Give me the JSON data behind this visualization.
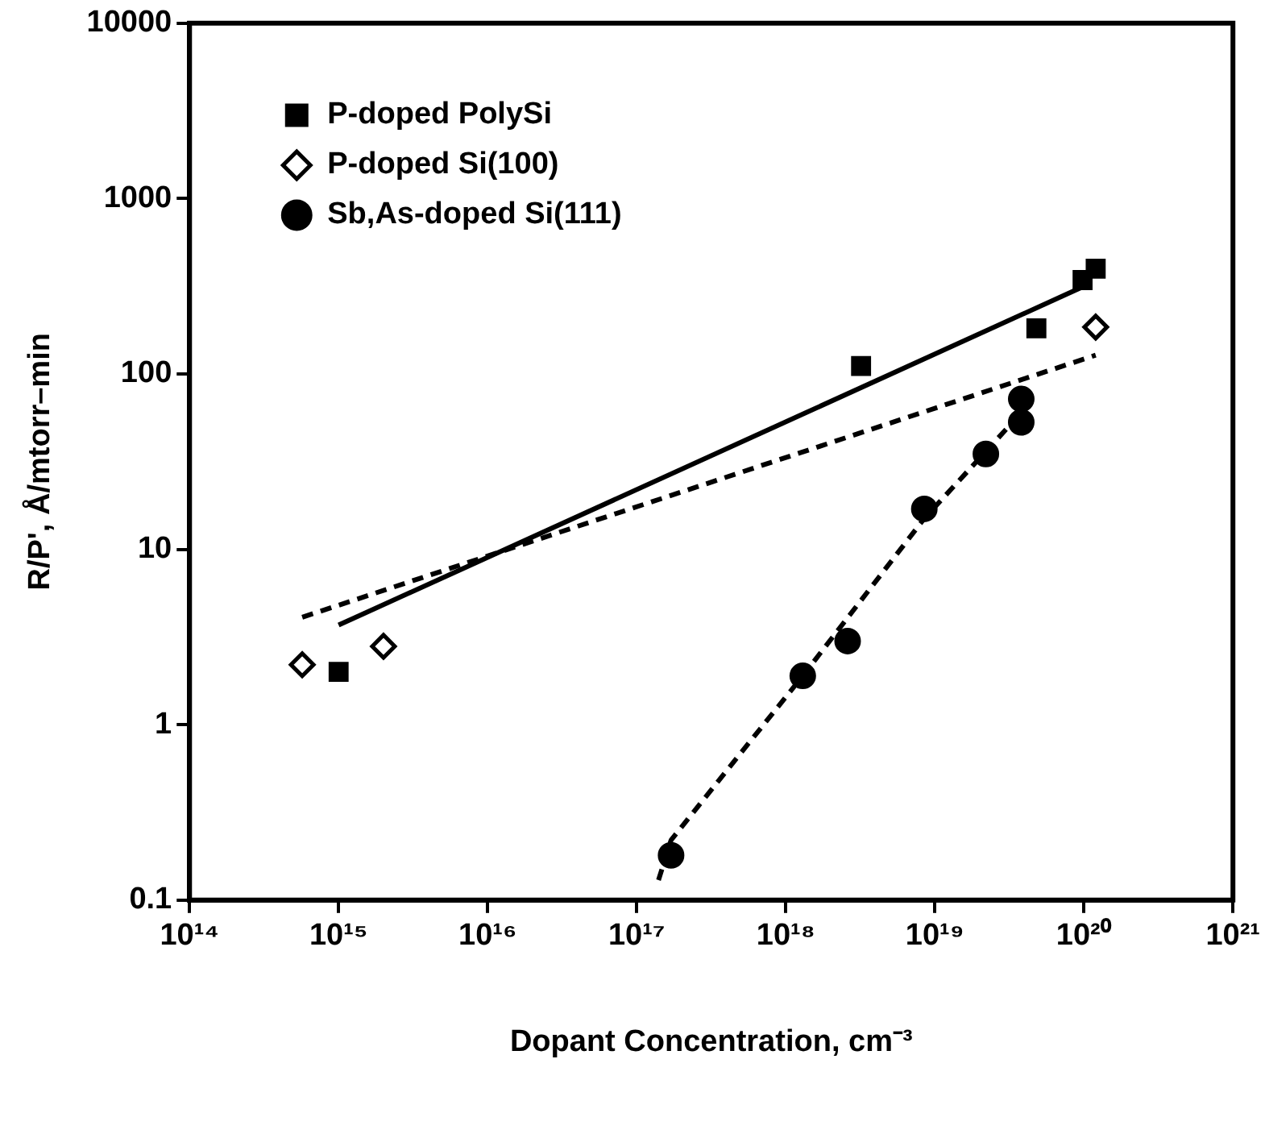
{
  "chart_data": {
    "type": "scatter",
    "xlabel": "Dopant Concentration, cm⁻³",
    "ylabel": "R/P', Å/mtorr–min",
    "log": "xy",
    "grid": false,
    "legend": "top left",
    "xlim": [
      100000000000000.0,
      1e+21
    ],
    "xticks": [
      {
        "value": 100000000000000.0,
        "label": "10¹⁴"
      },
      {
        "value": 1000000000000000.0,
        "label": "10¹⁵"
      },
      {
        "value": 1e+16,
        "label": "10¹⁶"
      },
      {
        "value": 1e+17,
        "label": "10¹⁷"
      },
      {
        "value": 1e+18,
        "label": "10¹⁸"
      },
      {
        "value": 1e+19,
        "label": "10¹⁹"
      },
      {
        "value": 1e+20,
        "label": "10²⁰"
      },
      {
        "value": 1e+21,
        "label": "10²¹"
      }
    ],
    "ylim": [
      0.1,
      10000
    ],
    "yticks": [
      0.1,
      1,
      10,
      100,
      1000,
      10000
    ],
    "series": [
      {
        "name": "P-doped PolySi",
        "marker": "square",
        "color": "#000000",
        "x": [
          1000000000000000.0,
          3.2e+18,
          4.8e+19,
          9.8e+19,
          1.2e+20
        ],
        "values": [
          2.0,
          111,
          182,
          343,
          398
        ]
      },
      {
        "type": "line",
        "marker": "none",
        "line_style": "solid",
        "color": "#000000",
        "x": [
          1000000000000000.0,
          1e+20
        ],
        "values": [
          3.7,
          316
        ]
      },
      {
        "name": "P-doped Si(100)",
        "marker": "diamond",
        "color": "#000000",
        "x": [
          570000000000000.0,
          2000000000000000.0,
          1.2e+20
        ],
        "values": [
          2.2,
          2.8,
          185
        ]
      },
      {
        "type": "line",
        "marker": "none",
        "line_style": "dashed",
        "color": "#000000",
        "x": [
          570000000000000.0,
          1.2e+20
        ],
        "values": [
          4.1,
          128
        ]
      },
      {
        "name": "Sb,As-doped Si(111)",
        "marker": "circle",
        "color": "#000000",
        "x": [
          1.7e+17,
          1.3e+18,
          2.6e+18,
          8.5e+18,
          2.2e+19,
          3.8e+19,
          3.8e+19
        ],
        "values": [
          0.18,
          1.9,
          3.0,
          17,
          35,
          53,
          72
        ]
      },
      {
        "type": "line",
        "marker": "none",
        "line_style": "dashed",
        "color": "#000000",
        "x": [
          1.4e+17,
          1.7e+17,
          1.3e+18,
          8.5e+18,
          3.8e+19
        ],
        "values": [
          0.13,
          0.22,
          1.9,
          15,
          60
        ]
      }
    ]
  }
}
